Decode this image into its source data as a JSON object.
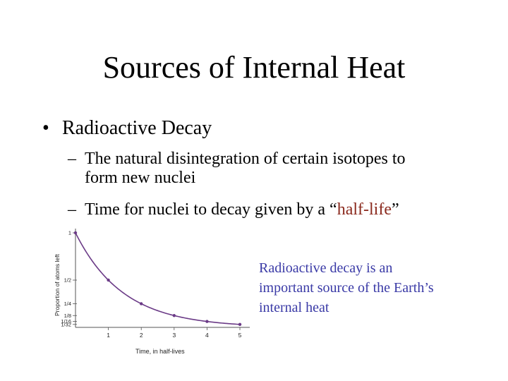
{
  "slide": {
    "title": "Sources of Internal Heat",
    "bullet": {
      "marker": "•",
      "text": "Radioactive Decay"
    },
    "subbullets": [
      {
        "marker": "–",
        "line1": "The natural disintegration of certain isotopes to",
        "line2": "form new nuclei"
      },
      {
        "marker": "–",
        "before": "Time for nuclei to decay given by a “",
        "highlight": "half-life",
        "after": "”"
      }
    ],
    "note": "Radioactive decay is an important source of the Earth’s internal heat",
    "accent_color": "#8b2a1e",
    "note_color": "#3a3aa6"
  },
  "chart_data": {
    "type": "line",
    "title": "",
    "xlabel": "Time, in half-lives",
    "ylabel": "Proportion of atoms left",
    "x": [
      0,
      1,
      2,
      3,
      4,
      5
    ],
    "y": [
      1,
      0.5,
      0.25,
      0.125,
      0.0625,
      0.03125
    ],
    "x_ticks": [
      "1",
      "2",
      "3",
      "4",
      "5"
    ],
    "y_ticks": [
      {
        "label": "1",
        "value": 1
      },
      {
        "label": "1/2",
        "value": 0.5
      },
      {
        "label": "1/4",
        "value": 0.25
      },
      {
        "label": "1/8",
        "value": 0.125
      },
      {
        "label": "1/16",
        "value": 0.0625
      },
      {
        "label": "1/32",
        "value": 0.03125
      }
    ],
    "xlim": [
      0,
      5.3
    ],
    "ylim": [
      0,
      1
    ],
    "line_color": "#6b3b87",
    "marker_color": "#6b3b87",
    "grid": false
  }
}
